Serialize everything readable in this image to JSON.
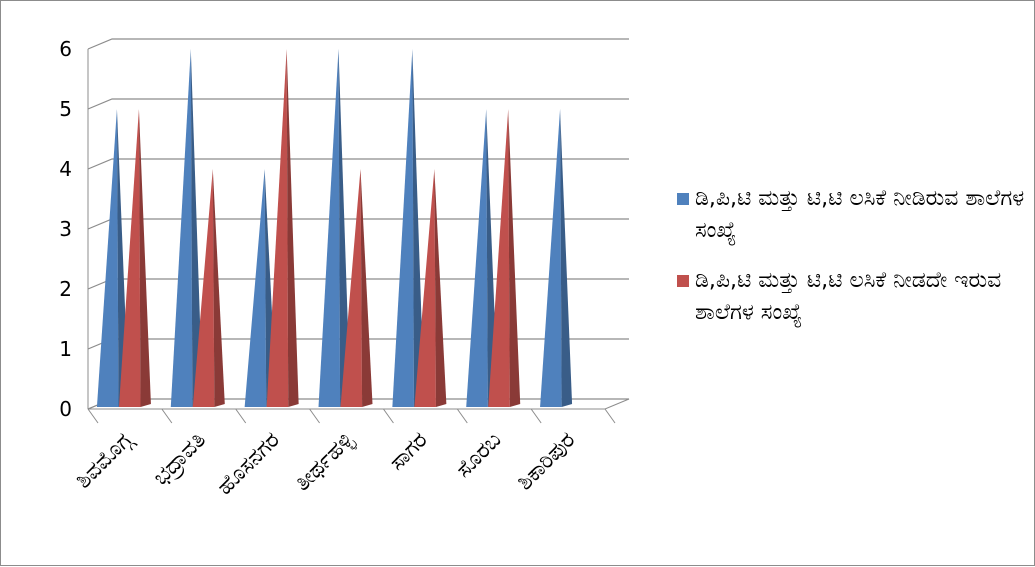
{
  "chart_data": {
    "type": "bar",
    "style": "3d-cone",
    "categories": [
      "ಶಿವಮೊಗ್ಗ",
      "ಭದ್ರಾವತಿ",
      "ಹೊಸನಗರ",
      "ತೀರ್ಥಹಳ್ಳಿ",
      "ಸಾಗರ",
      "ಸೊರಬ",
      "ಶಿಕಾರಿಪುರ"
    ],
    "series": [
      {
        "name": "ಡಿ,ಪಿ,ಟಿ ಮತ್ತು ಟಿ,ಟಿ ಲಸಿಕೆ ನೀಡಿರುವ ಶಾಲೆಗಳ ಸಂಖ್ಯೆ",
        "values": [
          5,
          6,
          4,
          6,
          6,
          5,
          5
        ],
        "color": "#4f81bd"
      },
      {
        "name": "ಡಿ,ಪಿ,ಟಿ ಮತ್ತು ಟಿ,ಟಿ ಲಸಿಕೆ ನೀಡದೇ ಇರುವ ಶಾಲೆಗಳ ಸಂಖ್ಯೆ",
        "values": [
          5,
          4,
          6,
          4,
          4,
          5,
          0
        ],
        "color": "#c0504d"
      }
    ],
    "ylim": [
      0,
      6
    ],
    "yticks": [
      "0",
      "1",
      "2",
      "3",
      "4",
      "5",
      "6"
    ],
    "grid": true,
    "legend": "right",
    "title": "",
    "xlabel": "",
    "ylabel": ""
  }
}
